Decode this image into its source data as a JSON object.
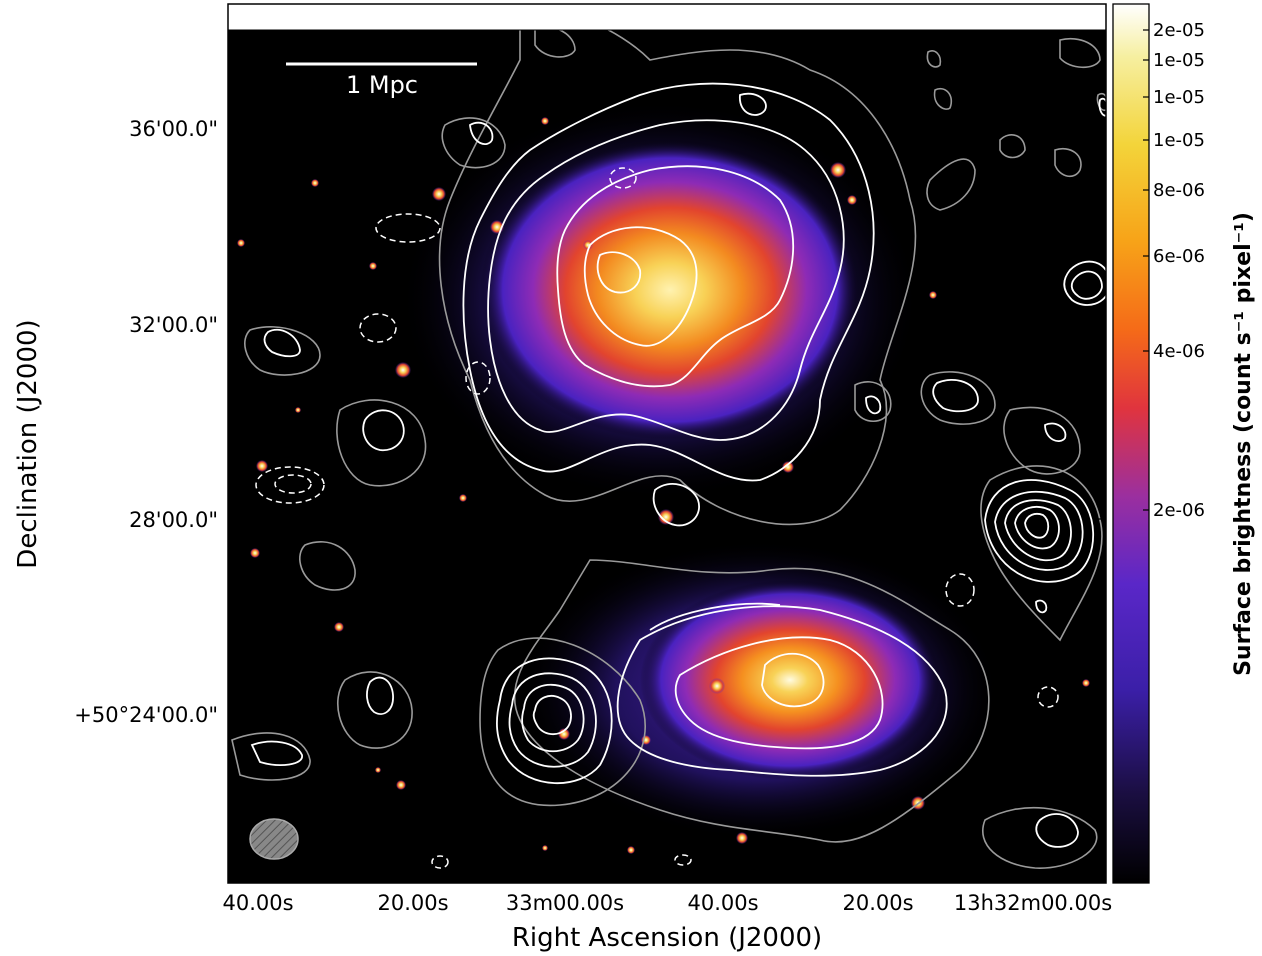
{
  "figure": {
    "x_axis": {
      "title": "Right Ascension (J2000)",
      "ticks": [
        "40.00s",
        "20.00s",
        "33m00.00s",
        "40.00s",
        "20.00s",
        "13h32m00.00s"
      ]
    },
    "y_axis": {
      "title": "Declination (J2000)",
      "ticks": [
        "36'00.0\"",
        "32'00.0\"",
        "28'00.0\"",
        "+50°24'00.0\""
      ]
    },
    "scale_bar_label": "1 Mpc",
    "colorbar": {
      "title": "Surface brightness (count s⁻¹ pixel⁻¹)",
      "ticks": [
        "2e-05",
        "1e-05",
        "1e-05",
        "1e-05",
        "8e-06",
        "6e-06",
        "4e-06",
        "2e-06"
      ],
      "colormap": "gnuplot2-like (black → purple → red → orange → yellow → white)"
    },
    "contours": {
      "positive": "white solid",
      "negative": "white dashed",
      "outer": "gray solid"
    },
    "beam": "hatched gray ellipse, bottom-left"
  }
}
